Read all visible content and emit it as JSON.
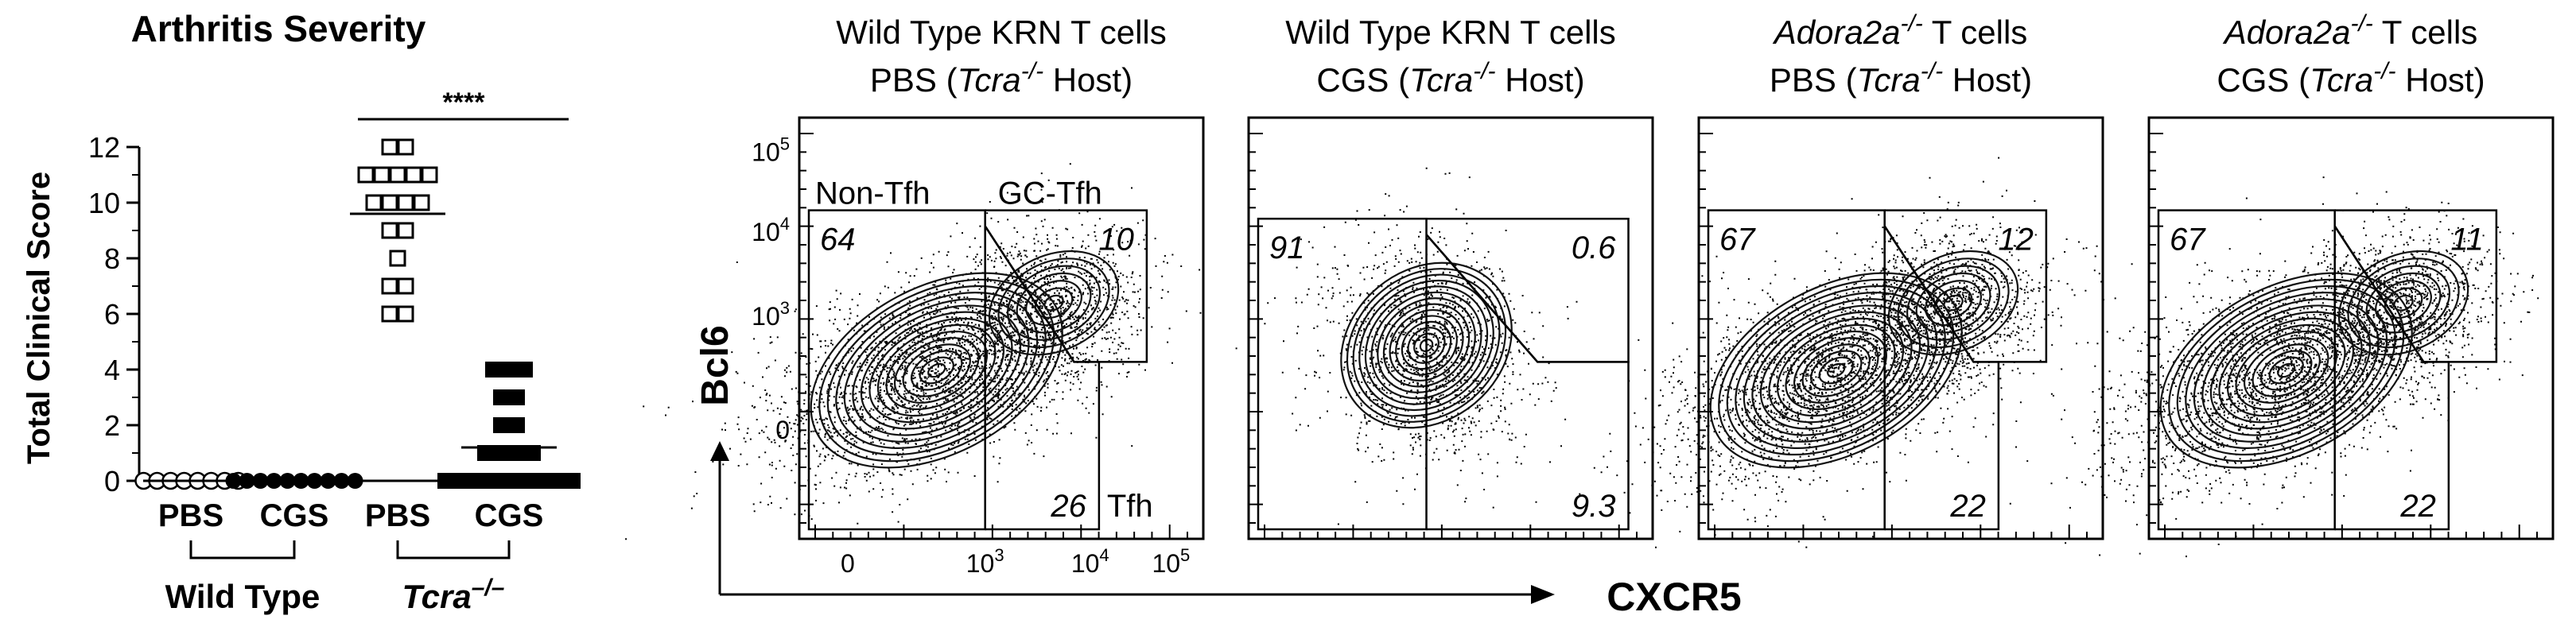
{
  "chart_data": [
    {
      "type": "scatter",
      "title": "Arthritis Severity",
      "ylabel": "Total Clinical Score",
      "ylim": [
        0,
        12
      ],
      "yticks": [
        0,
        2,
        4,
        6,
        8,
        10,
        12
      ],
      "significance": "****",
      "groups": [
        {
          "name": "Wild Type",
          "labels": [
            "PBS",
            "CGS"
          ]
        },
        {
          "name": "Tcra",
          "name_sup": "–/–",
          "labels": [
            "PBS",
            "CGS"
          ]
        }
      ],
      "series": [
        {
          "name": "PBS",
          "group": "Wild Type",
          "marker": "circle-open",
          "values": [
            0,
            0,
            0,
            0,
            0,
            0,
            0,
            0
          ],
          "mean": 0
        },
        {
          "name": "CGS",
          "group": "Wild Type",
          "marker": "circle-filled",
          "values": [
            0,
            0,
            0,
            0,
            0,
            0,
            0,
            0,
            0,
            0
          ],
          "mean": 0
        },
        {
          "name": "PBS",
          "group": "Tcra",
          "marker": "square-open",
          "values": [
            12,
            12,
            11,
            11,
            11,
            11,
            11,
            10,
            10,
            10,
            10,
            9,
            9,
            8,
            7,
            7,
            6,
            6
          ],
          "mean": 9.6
        },
        {
          "name": "CGS",
          "group": "Tcra",
          "marker": "square-filled",
          "values": [
            4,
            4,
            4,
            3,
            3,
            2,
            2,
            1,
            1,
            1,
            1,
            0,
            0,
            0,
            0,
            0,
            0,
            0,
            0,
            0
          ],
          "mean": 1.2
        }
      ]
    },
    {
      "type": "contour",
      "x_axis_label": "CXCR5",
      "y_axis_label": "Bcl6",
      "x_ticks": [
        {
          "base": "0",
          "sup": ""
        },
        {
          "base": "10",
          "sup": "3"
        },
        {
          "base": "10",
          "sup": "4"
        },
        {
          "base": "10",
          "sup": "5"
        }
      ],
      "y_ticks": [
        {
          "base": "0",
          "sup": ""
        },
        {
          "base": "10",
          "sup": "3"
        },
        {
          "base": "10",
          "sup": "4"
        },
        {
          "base": "10",
          "sup": "5"
        }
      ],
      "gate_names": [
        "Non-Tfh",
        "GC-Tfh",
        "Tfh"
      ],
      "panels": [
        {
          "title_gene": "",
          "title_line1": "Wild Type KRN T cells",
          "treatment": "PBS",
          "host_gene": "Tcra",
          "host_sup": "-/-",
          "host_suffix": " Host)",
          "non_tfh": "64",
          "gc_tfh": "10",
          "tfh": "26"
        },
        {
          "title_gene": "",
          "title_line1": "Wild Type KRN T cells",
          "treatment": "CGS",
          "host_gene": "Tcra",
          "host_sup": "-/-",
          "host_suffix": " Host)",
          "non_tfh": "91",
          "gc_tfh": "0.6",
          "tfh": "9.3"
        },
        {
          "title_gene": "Adora2a",
          "title_sup": "-/-",
          "title_line1": " T cells",
          "treatment": "PBS",
          "host_gene": "Tcra",
          "host_sup": "-/-",
          "host_suffix": " Host)",
          "non_tfh": "67",
          "gc_tfh": "12",
          "tfh": "22"
        },
        {
          "title_gene": "Adora2a",
          "title_sup": "-/-",
          "title_line1": " T cells",
          "treatment": "CGS",
          "host_gene": "Tcra",
          "host_sup": "-/-",
          "host_suffix": " Host)",
          "non_tfh": "67",
          "gc_tfh": "11",
          "tfh": "22"
        }
      ]
    }
  ]
}
